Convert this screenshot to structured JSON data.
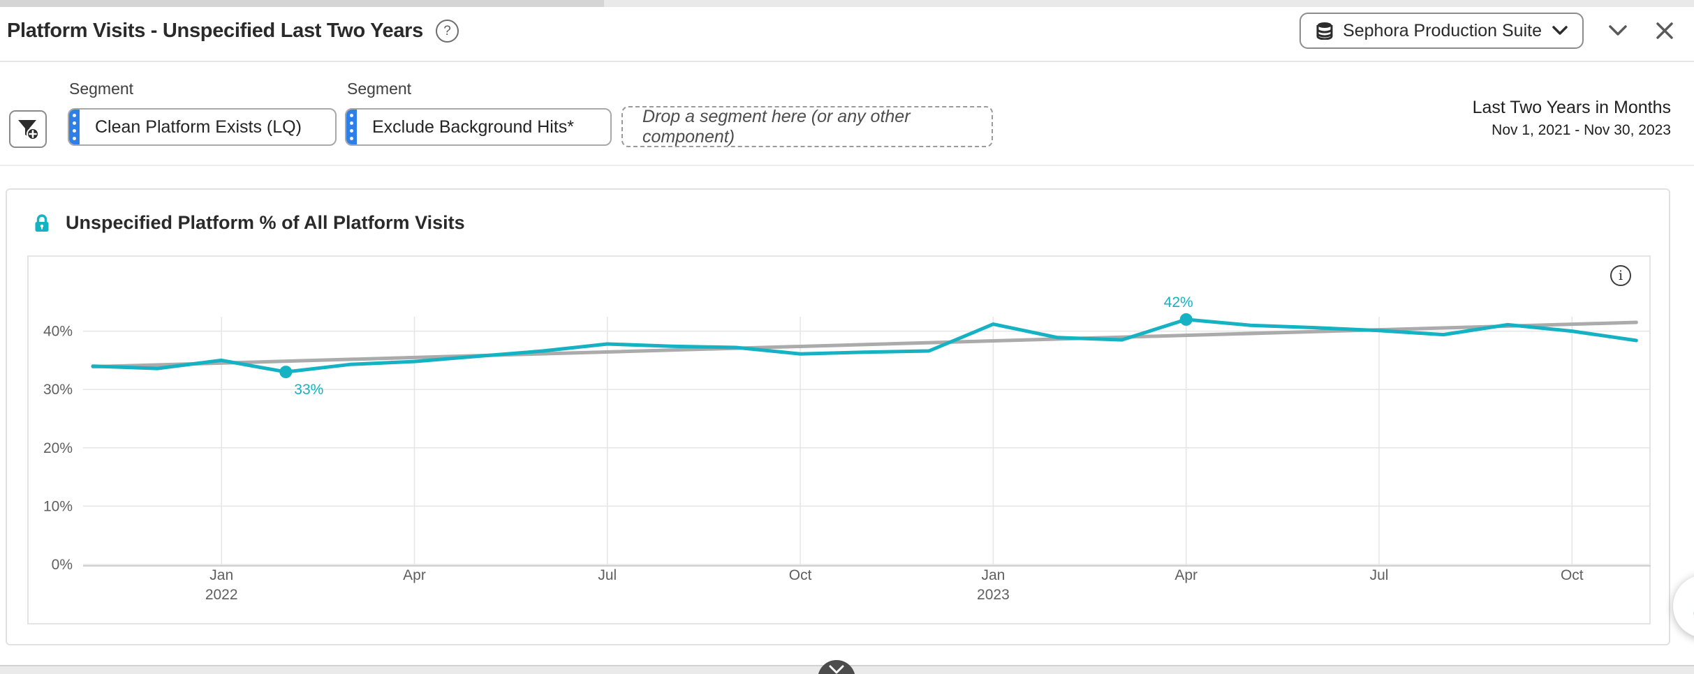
{
  "header": {
    "title": "Platform Visits - Unspecified Last Two Years",
    "help_label": "?",
    "report_suite": {
      "label": "Sephora Production Suite",
      "icon": "database"
    },
    "collapse_icon": "chevron-down",
    "close_icon": "x"
  },
  "filters": {
    "segment_label": "Segment",
    "segments": [
      {
        "label": "Clean Platform Exists (LQ)"
      },
      {
        "label": "Exclude Background Hits*"
      }
    ],
    "drop_zone": "Drop a segment here (or any other component)",
    "date_range": {
      "title": "Last Two Years in Months",
      "detail": "Nov 1, 2021 - Nov 30, 2023"
    }
  },
  "panel": {
    "title": "Unspecified Platform % of All Platform Visits",
    "lock_icon": "lock",
    "info_icon": "info",
    "info_label": "i"
  },
  "colors": {
    "series_teal": "#14b2c2",
    "trend_gray": "#ababab",
    "grid": "#e5e5e5",
    "axis": "#cfcfcf",
    "tick_text": "#5f5f5f",
    "segment_blue": "#2f7fe8"
  },
  "chart_data": {
    "type": "line",
    "title": "Unspecified Platform % of All Platform Visits",
    "x": [
      "Nov 2021",
      "Dec 2021",
      "Jan 2022",
      "Feb 2022",
      "Mar 2022",
      "Apr 2022",
      "May 2022",
      "Jun 2022",
      "Jul 2022",
      "Aug 2022",
      "Sep 2022",
      "Oct 2022",
      "Nov 2022",
      "Dec 2022",
      "Jan 2023",
      "Feb 2023",
      "Mar 2023",
      "Apr 2023",
      "May 2023",
      "Jun 2023",
      "Jul 2023",
      "Aug 2023",
      "Sep 2023",
      "Oct 2023",
      "Nov 2023"
    ],
    "series": [
      {
        "name": "Unspecified Platform % of All Platform Visits",
        "values": [
          34,
          33.6,
          35,
          33,
          34.3,
          34.8,
          35.7,
          36.6,
          37.8,
          37.4,
          37.2,
          36.1,
          36.4,
          36.6,
          41.2,
          38.9,
          38.5,
          42,
          41,
          40.6,
          40.1,
          39.4,
          41.1,
          40,
          38.4
        ]
      },
      {
        "name": "Linear trend",
        "trend_endpoints": [
          33.9,
          41.5
        ]
      }
    ],
    "annotations": [
      {
        "index": 3,
        "label": "33%",
        "position": "below-right"
      },
      {
        "index": 17,
        "label": "42%",
        "position": "above-left"
      }
    ],
    "x_ticks": [
      {
        "index": 2,
        "label": "Jan",
        "year": "2022"
      },
      {
        "index": 5,
        "label": "Apr"
      },
      {
        "index": 8,
        "label": "Jul"
      },
      {
        "index": 11,
        "label": "Oct"
      },
      {
        "index": 14,
        "label": "Jan",
        "year": "2023"
      },
      {
        "index": 17,
        "label": "Apr"
      },
      {
        "index": 20,
        "label": "Jul"
      },
      {
        "index": 23,
        "label": "Oct"
      }
    ],
    "y_ticks": [
      {
        "value": 0,
        "label": "0%"
      },
      {
        "value": 10,
        "label": "10%"
      },
      {
        "value": 20,
        "label": "20%"
      },
      {
        "value": 30,
        "label": "30%"
      },
      {
        "value": 40,
        "label": "40%"
      }
    ],
    "ylim": [
      0,
      48
    ],
    "grid": true,
    "legend": "none"
  }
}
